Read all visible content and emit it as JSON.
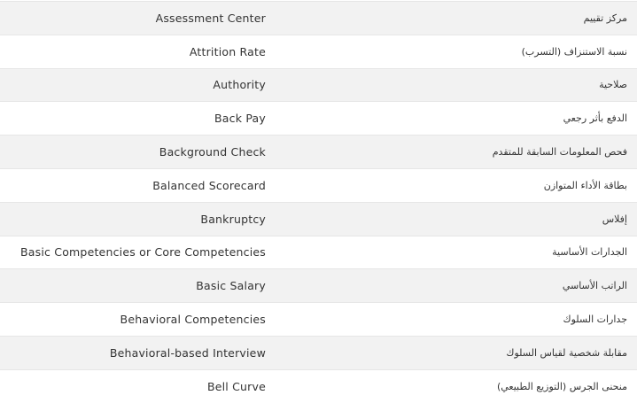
{
  "glossary": {
    "rows": [
      {
        "en": "Assessment Center",
        "ar": "مركز تقييم"
      },
      {
        "en": "Attrition Rate",
        "ar": "نسبة الاستنزاف (التسرب)"
      },
      {
        "en": "Authority",
        "ar": "صلاحية"
      },
      {
        "en": "Back Pay",
        "ar": "الدفع بأثر رجعي"
      },
      {
        "en": "Background Check",
        "ar": "فحص المعلومات السابقة للمتقدم"
      },
      {
        "en": "Balanced Scorecard",
        "ar": "بطاقة الأداء المتوازن"
      },
      {
        "en": "Bankruptcy",
        "ar": "إفلاس"
      },
      {
        "en": "Basic Competencies or Core Competencies",
        "ar": "الجدارات الأساسية"
      },
      {
        "en": "Basic Salary",
        "ar": "الراتب الأساسي"
      },
      {
        "en": "Behavioral Competencies",
        "ar": "جدارات السلوك"
      },
      {
        "en": "Behavioral-based Interview",
        "ar": "مقابلة شخصية لقياس السلوك"
      },
      {
        "en": "Bell Curve",
        "ar": "منحنى الجرس (التوزيع الطبيعي)"
      }
    ]
  }
}
